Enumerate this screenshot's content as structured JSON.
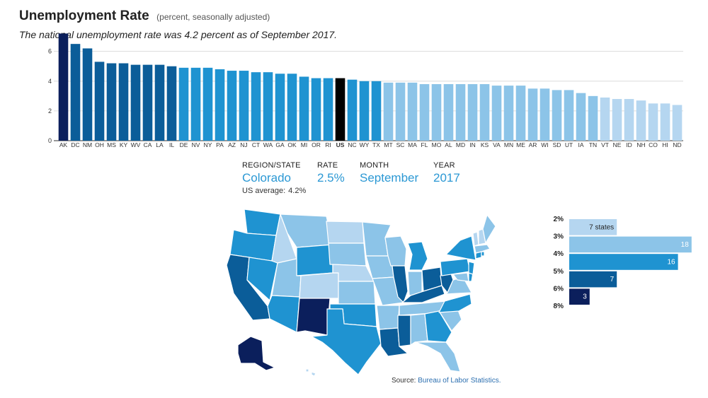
{
  "title": "Unemployment Rate",
  "title_note": "(percent, seasonally adjusted)",
  "subtitle": "The national unemployment rate was 4.2 percent as of September 2017.",
  "colors": {
    "rate_2_3": "#b5d6f0",
    "rate_3_4": "#8cc4e8",
    "rate_4_5": "#1f93d1",
    "rate_5_7": "#0b5d99",
    "rate_7_8": "#0b1f5c",
    "us_bar": "#000000",
    "accent_text": "#2b98d4"
  },
  "chart_data": {
    "type": "bar",
    "categories": [
      "AK",
      "DC",
      "NM",
      "OH",
      "MS",
      "KY",
      "WV",
      "CA",
      "LA",
      "IL",
      "DE",
      "NV",
      "NY",
      "PA",
      "AZ",
      "NJ",
      "CT",
      "WA",
      "GA",
      "OK",
      "MI",
      "OR",
      "RI",
      "US",
      "NC",
      "WY",
      "TX",
      "MT",
      "SC",
      "MA",
      "FL",
      "MO",
      "AL",
      "MD",
      "IN",
      "KS",
      "VA",
      "MN",
      "ME",
      "AR",
      "WI",
      "SD",
      "UT",
      "IA",
      "TN",
      "VT",
      "NE",
      "ID",
      "NH",
      "CO",
      "HI",
      "ND"
    ],
    "values": [
      7.2,
      6.5,
      6.2,
      5.3,
      5.2,
      5.2,
      5.1,
      5.1,
      5.1,
      5.0,
      4.9,
      4.9,
      4.9,
      4.8,
      4.7,
      4.7,
      4.6,
      4.6,
      4.5,
      4.5,
      4.3,
      4.2,
      4.2,
      4.2,
      4.1,
      4.0,
      4.0,
      3.9,
      3.9,
      3.9,
      3.8,
      3.8,
      3.8,
      3.8,
      3.8,
      3.8,
      3.7,
      3.7,
      3.7,
      3.5,
      3.5,
      3.4,
      3.4,
      3.2,
      3.0,
      2.9,
      2.8,
      2.8,
      2.7,
      2.5,
      2.5,
      2.4
    ],
    "highlight": "US",
    "yticks": [
      0,
      2,
      4,
      6
    ],
    "ylim": [
      0,
      7.6
    ],
    "grid": true
  },
  "info": {
    "region_label": "REGION/STATE",
    "region_value": "Colorado",
    "rate_label": "RATE",
    "rate_value": "2.5%",
    "month_label": "MONTH",
    "month_value": "September",
    "year_label": "YEAR",
    "year_value": "2017",
    "us_average_label": "US average:",
    "us_average_value": "4.2%"
  },
  "legend": {
    "bins": [
      "2%",
      "3%",
      "4%",
      "5%",
      "6%",
      "8%"
    ],
    "counts": [
      {
        "label": "7 states",
        "value": 7
      },
      {
        "label": "18",
        "value": 18
      },
      {
        "label": "16",
        "value": 16
      },
      {
        "label": "7",
        "value": 7
      },
      {
        "label": "3",
        "value": 3
      }
    ]
  },
  "source": {
    "prefix": "Source:",
    "link_text": "Bureau of Labor Statistics."
  }
}
